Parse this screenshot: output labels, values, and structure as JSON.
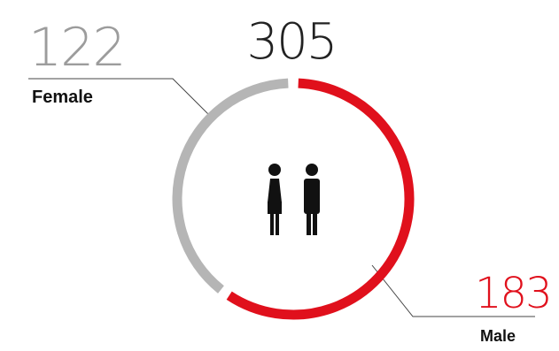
{
  "chart_data": {
    "type": "pie",
    "total": 305,
    "categories": [
      "Female",
      "Male"
    ],
    "values": [
      122,
      183
    ],
    "colors": {
      "Female": "#b5b5b5",
      "Male": "#e0101c"
    },
    "icon": "female-male-people-icon"
  }
}
